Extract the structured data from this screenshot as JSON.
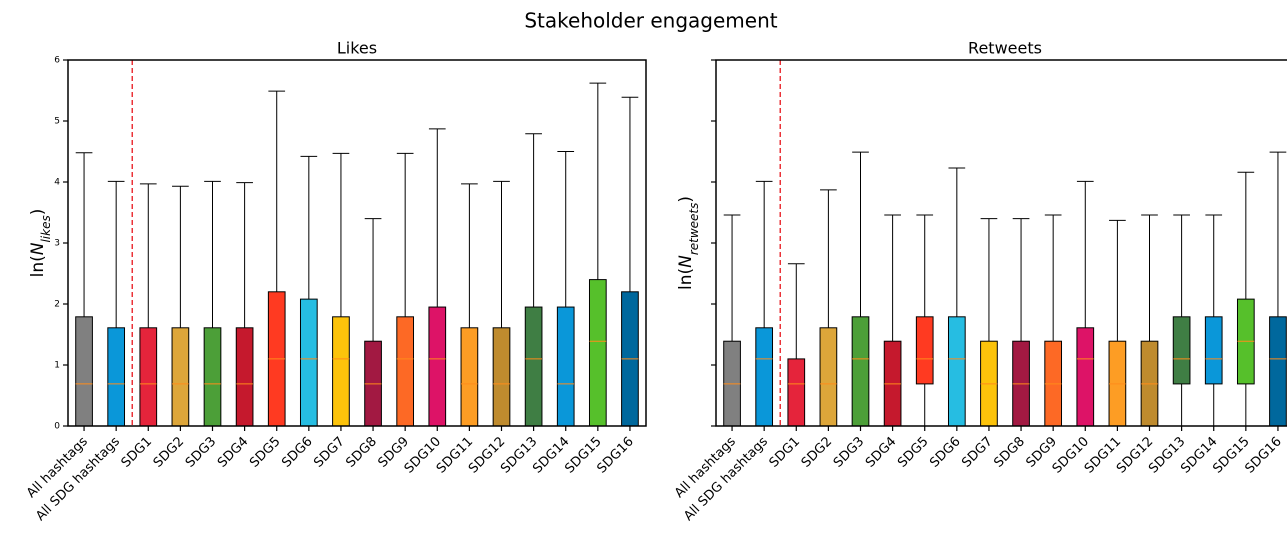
{
  "title": "Stakeholder engagement",
  "chart_data": [
    {
      "type": "box",
      "title": "Likes",
      "ylabel_parts": [
        "ln(",
        "N",
        "likes",
        ")"
      ],
      "categories": [
        "All hashtags",
        "All SDG hashtags",
        "SDG1",
        "SDG2",
        "SDG3",
        "SDG4",
        "SDG5",
        "SDG6",
        "SDG7",
        "SDG8",
        "SDG9",
        "SDG10",
        "SDG11",
        "SDG12",
        "SDG13",
        "SDG14",
        "SDG15",
        "SDG16"
      ],
      "min": [
        0,
        0,
        0,
        0,
        0,
        0,
        0,
        0,
        0,
        0,
        0,
        0,
        0,
        0,
        0,
        0,
        0,
        0
      ],
      "q1": [
        0,
        0,
        0,
        0,
        0,
        0,
        0,
        0,
        0,
        0,
        0,
        0,
        0,
        0,
        0,
        0,
        0,
        0
      ],
      "median": [
        0.69,
        0.69,
        0.69,
        0.69,
        0.69,
        0.69,
        1.1,
        1.1,
        1.1,
        0.69,
        1.1,
        1.1,
        0.69,
        0.69,
        1.1,
        0.69,
        1.39,
        1.1
      ],
      "q3": [
        1.79,
        1.61,
        1.61,
        1.61,
        1.61,
        1.61,
        2.2,
        2.08,
        1.79,
        1.39,
        1.79,
        1.95,
        1.61,
        1.61,
        1.95,
        1.95,
        2.4,
        2.2
      ],
      "max": [
        4.48,
        4.01,
        3.97,
        3.93,
        4.01,
        3.99,
        5.49,
        4.42,
        4.47,
        3.4,
        4.47,
        4.87,
        3.97,
        4.01,
        4.79,
        4.5,
        5.62,
        5.39
      ],
      "colors": [
        "#808080",
        "#0a97d9",
        "#e5243b",
        "#dda63a",
        "#4c9f38",
        "#c5192d",
        "#ff3a21",
        "#26bde2",
        "#fcc30b",
        "#a21942",
        "#fd6925",
        "#dd1367",
        "#fd9d24",
        "#bf8b2e",
        "#3f7e44",
        "#0a97d9",
        "#56c02b",
        "#00689d"
      ],
      "median_color": "#ff8c1a",
      "vline_x": 1.5,
      "vline_color": "#e8141c",
      "ylim": [
        0,
        6
      ],
      "yticks": [
        0,
        1,
        2,
        3,
        4,
        5,
        6
      ],
      "tick_labels": true
    },
    {
      "type": "box",
      "title": "Retweets",
      "ylabel_parts": [
        "ln(",
        "N",
        "retweets",
        ")"
      ],
      "categories": [
        "All hashtags",
        "All SDG hashtags",
        "SDG1",
        "SDG2",
        "SDG3",
        "SDG4",
        "SDG5",
        "SDG6",
        "SDG7",
        "SDG8",
        "SDG9",
        "SDG10",
        "SDG11",
        "SDG12",
        "SDG13",
        "SDG14",
        "SDG15",
        "SDG16"
      ],
      "min": [
        0,
        0,
        0,
        0,
        0,
        0,
        0,
        0,
        0,
        0,
        0,
        0,
        0,
        0,
        0,
        0,
        0,
        0
      ],
      "q1": [
        0,
        0,
        0,
        0,
        0,
        0,
        0.69,
        0,
        0,
        0,
        0,
        0,
        0,
        0,
        0.69,
        0.69,
        0.69,
        0
      ],
      "median": [
        0.69,
        1.1,
        0.69,
        0.69,
        1.1,
        0.69,
        1.1,
        1.1,
        0.69,
        0.69,
        0.69,
        1.1,
        0.69,
        0.69,
        1.1,
        1.1,
        1.39,
        1.1
      ],
      "q3": [
        1.39,
        1.61,
        1.1,
        1.61,
        1.79,
        1.39,
        1.79,
        1.79,
        1.39,
        1.39,
        1.39,
        1.61,
        1.39,
        1.39,
        1.79,
        1.79,
        2.08,
        1.79
      ],
      "max": [
        3.46,
        4.01,
        2.66,
        3.87,
        4.49,
        3.46,
        3.46,
        4.23,
        3.4,
        3.4,
        3.46,
        4.01,
        3.37,
        3.46,
        3.46,
        3.46,
        4.16,
        4.49
      ],
      "colors": [
        "#808080",
        "#0a97d9",
        "#e5243b",
        "#dda63a",
        "#4c9f38",
        "#c5192d",
        "#ff3a21",
        "#26bde2",
        "#fcc30b",
        "#a21942",
        "#fd6925",
        "#dd1367",
        "#fd9d24",
        "#bf8b2e",
        "#3f7e44",
        "#0a97d9",
        "#56c02b",
        "#00689d"
      ],
      "median_color": "#ff8c1a",
      "vline_x": 1.5,
      "vline_color": "#e8141c",
      "ylim": [
        0,
        6
      ],
      "yticks": [
        0,
        1,
        2,
        3,
        4,
        5,
        6
      ],
      "tick_labels": false
    }
  ]
}
